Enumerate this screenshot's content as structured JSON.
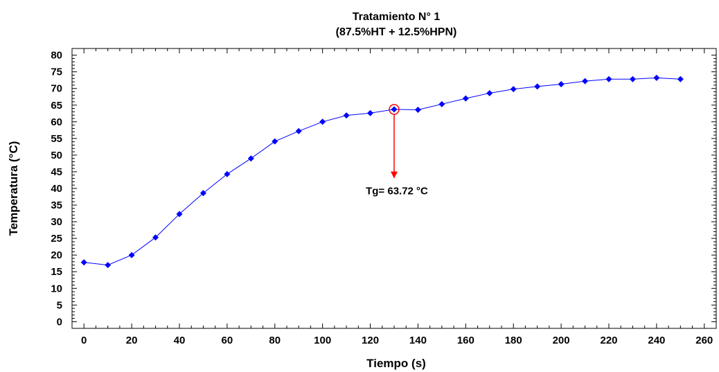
{
  "chart_data": {
    "type": "line",
    "title": "Tratamiento N° 1",
    "subtitle": "(87.5%HT + 12.5%HPN)",
    "xlabel": "Tiempo (s)",
    "ylabel": "Temperatura (°C)",
    "xlim": [
      -5,
      265
    ],
    "ylim": [
      -2,
      82
    ],
    "x_ticks": [
      0,
      20,
      40,
      60,
      80,
      100,
      120,
      140,
      160,
      180,
      200,
      220,
      240,
      260
    ],
    "y_ticks": [
      0,
      5,
      10,
      15,
      20,
      25,
      30,
      35,
      40,
      45,
      50,
      55,
      60,
      65,
      70,
      75,
      80
    ],
    "grid": false,
    "series": [
      {
        "color": "#0000ff",
        "x": [
          0,
          10,
          20,
          30,
          40,
          50,
          60,
          70,
          80,
          90,
          100,
          110,
          120,
          130,
          140,
          150,
          160,
          170,
          180,
          190,
          200,
          210,
          220,
          230,
          240,
          250
        ],
        "y": [
          17.8,
          17.0,
          20.0,
          25.3,
          32.3,
          38.6,
          44.3,
          49.0,
          54.1,
          57.2,
          60.0,
          61.9,
          62.6,
          63.72,
          63.6,
          65.3,
          67.0,
          68.6,
          69.8,
          70.6,
          71.3,
          72.2,
          72.8,
          72.8,
          73.2,
          72.8
        ]
      }
    ],
    "annotation": {
      "text": "Tg= 63.72 °C",
      "x": 130,
      "y": 63.72,
      "arrow_to_y": 43,
      "color": "#ff0000"
    }
  }
}
